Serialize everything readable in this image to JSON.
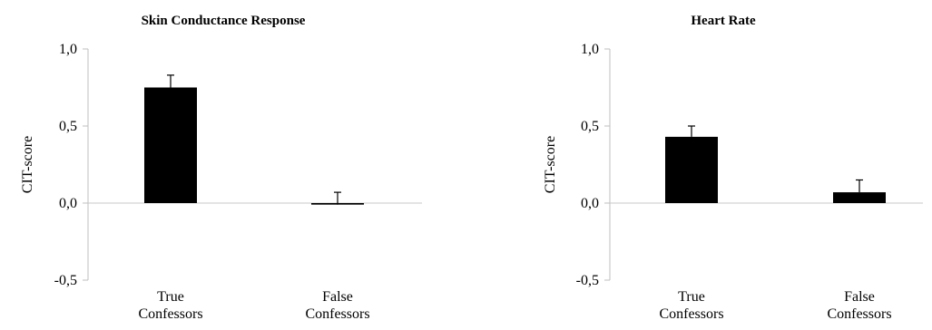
{
  "chart_data": [
    {
      "type": "bar",
      "title": "Skin Conductance Response",
      "ylabel": "CIT-score",
      "xlabel": "",
      "categories": [
        [
          "True",
          "Confessors"
        ],
        [
          "False",
          "Confessors"
        ]
      ],
      "values": [
        0.75,
        -0.01
      ],
      "error": [
        0.08,
        0.08
      ],
      "ylim": [
        -0.5,
        1.0
      ],
      "yticks": [
        "1,0",
        "0,5",
        "0,0",
        "-0,5"
      ],
      "ytick_values": [
        1.0,
        0.5,
        0.0,
        -0.5
      ],
      "bar_color": "#000000"
    },
    {
      "type": "bar",
      "title": "Heart Rate",
      "ylabel": "CIT-score",
      "xlabel": "",
      "categories": [
        [
          "True",
          "Confessors"
        ],
        [
          "False",
          "Confessors"
        ]
      ],
      "values": [
        0.43,
        0.07
      ],
      "error": [
        0.07,
        0.08
      ],
      "ylim": [
        -0.5,
        1.0
      ],
      "yticks": [
        "1,0",
        "0,5",
        "0,0",
        "-0,5"
      ],
      "ytick_values": [
        1.0,
        0.5,
        0.0,
        -0.5
      ],
      "bar_color": "#000000"
    }
  ]
}
